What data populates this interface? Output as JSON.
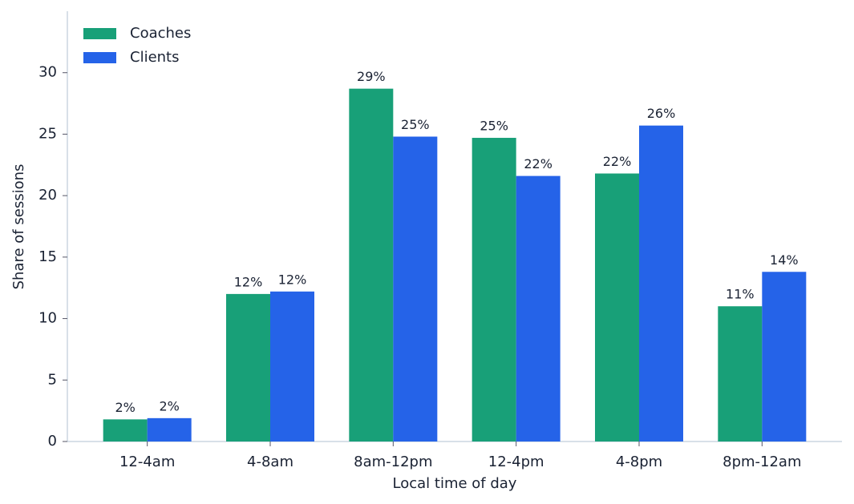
{
  "chart_data": {
    "type": "bar",
    "x_label": "Local time of day",
    "y_label": "Share of sessions",
    "categories": [
      "12-4am",
      "4-8am",
      "8am-12pm",
      "12-4pm",
      "4-8pm",
      "8pm-12am"
    ],
    "series": [
      {
        "name": "Coaches",
        "color": "#18a078",
        "values": [
          1.8,
          12.0,
          28.7,
          24.7,
          21.8,
          11.0
        ],
        "value_labels": [
          "2%",
          "12%",
          "29%",
          "25%",
          "22%",
          "11%"
        ]
      },
      {
        "name": "Clients",
        "color": "#2563e8",
        "values": [
          1.9,
          12.2,
          24.8,
          21.6,
          25.7,
          13.8
        ],
        "value_labels": [
          "2%",
          "12%",
          "25%",
          "22%",
          "26%",
          "14%"
        ]
      }
    ],
    "ylim": [
      0,
      35
    ],
    "yticks": [
      0,
      5,
      10,
      15,
      20,
      25,
      30
    ],
    "legend": "upper left"
  }
}
